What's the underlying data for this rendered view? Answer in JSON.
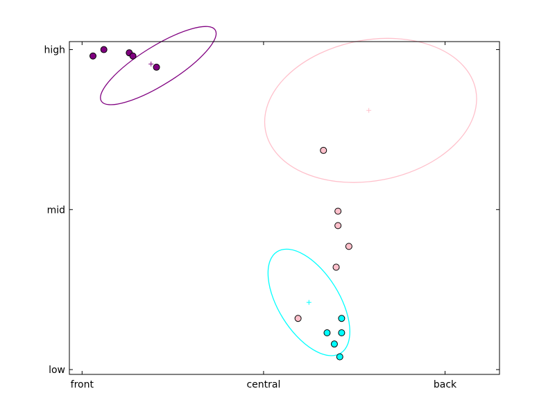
{
  "chart_data": {
    "type": "scatter",
    "title": "",
    "xlabel": "",
    "ylabel": "",
    "xlim": [
      -0.07,
      2.3
    ],
    "ylim": [
      -0.03,
      2.05
    ],
    "grid": false,
    "legend": "none",
    "x_ticks": [
      {
        "value": 0,
        "label": "front"
      },
      {
        "value": 1,
        "label": "central"
      },
      {
        "value": 2,
        "label": "back"
      }
    ],
    "y_ticks": [
      {
        "value": 0,
        "label": "low"
      },
      {
        "value": 1,
        "label": "mid"
      },
      {
        "value": 2,
        "label": "high"
      }
    ],
    "series": [
      {
        "color": "#800080",
        "points": [
          {
            "x": 0.06,
            "y": 1.96
          },
          {
            "x": 0.12,
            "y": 2.0
          },
          {
            "x": 0.26,
            "y": 1.98
          },
          {
            "x": 0.28,
            "y": 1.96
          },
          {
            "x": 0.41,
            "y": 1.89
          }
        ],
        "mean": {
          "x": 0.38,
          "y": 1.91
        },
        "ellipse": {
          "cx": 0.42,
          "cy": 1.9,
          "rx": 0.37,
          "ry": 0.12,
          "angle_deg": -32
        }
      },
      {
        "color": "#ffc0cb",
        "points": [
          {
            "x": 1.33,
            "y": 1.37
          },
          {
            "x": 1.41,
            "y": 0.99
          },
          {
            "x": 1.41,
            "y": 0.9
          },
          {
            "x": 1.47,
            "y": 0.77
          },
          {
            "x": 1.4,
            "y": 0.64
          },
          {
            "x": 1.19,
            "y": 0.32
          }
        ],
        "mean": {
          "x": 1.58,
          "y": 1.62
        },
        "ellipse": {
          "cx": 1.59,
          "cy": 1.62,
          "rx": 0.59,
          "ry": 0.44,
          "angle_deg": -11
        }
      },
      {
        "color": "#00ffff",
        "points": [
          {
            "x": 1.43,
            "y": 0.32
          },
          {
            "x": 1.43,
            "y": 0.23
          },
          {
            "x": 1.35,
            "y": 0.23
          },
          {
            "x": 1.39,
            "y": 0.16
          },
          {
            "x": 1.42,
            "y": 0.08
          }
        ],
        "mean": {
          "x": 1.25,
          "y": 0.42
        },
        "ellipse": {
          "cx": 1.25,
          "cy": 0.42,
          "rx": 0.33,
          "ry": 0.19,
          "angle_deg": 58
        }
      }
    ]
  }
}
